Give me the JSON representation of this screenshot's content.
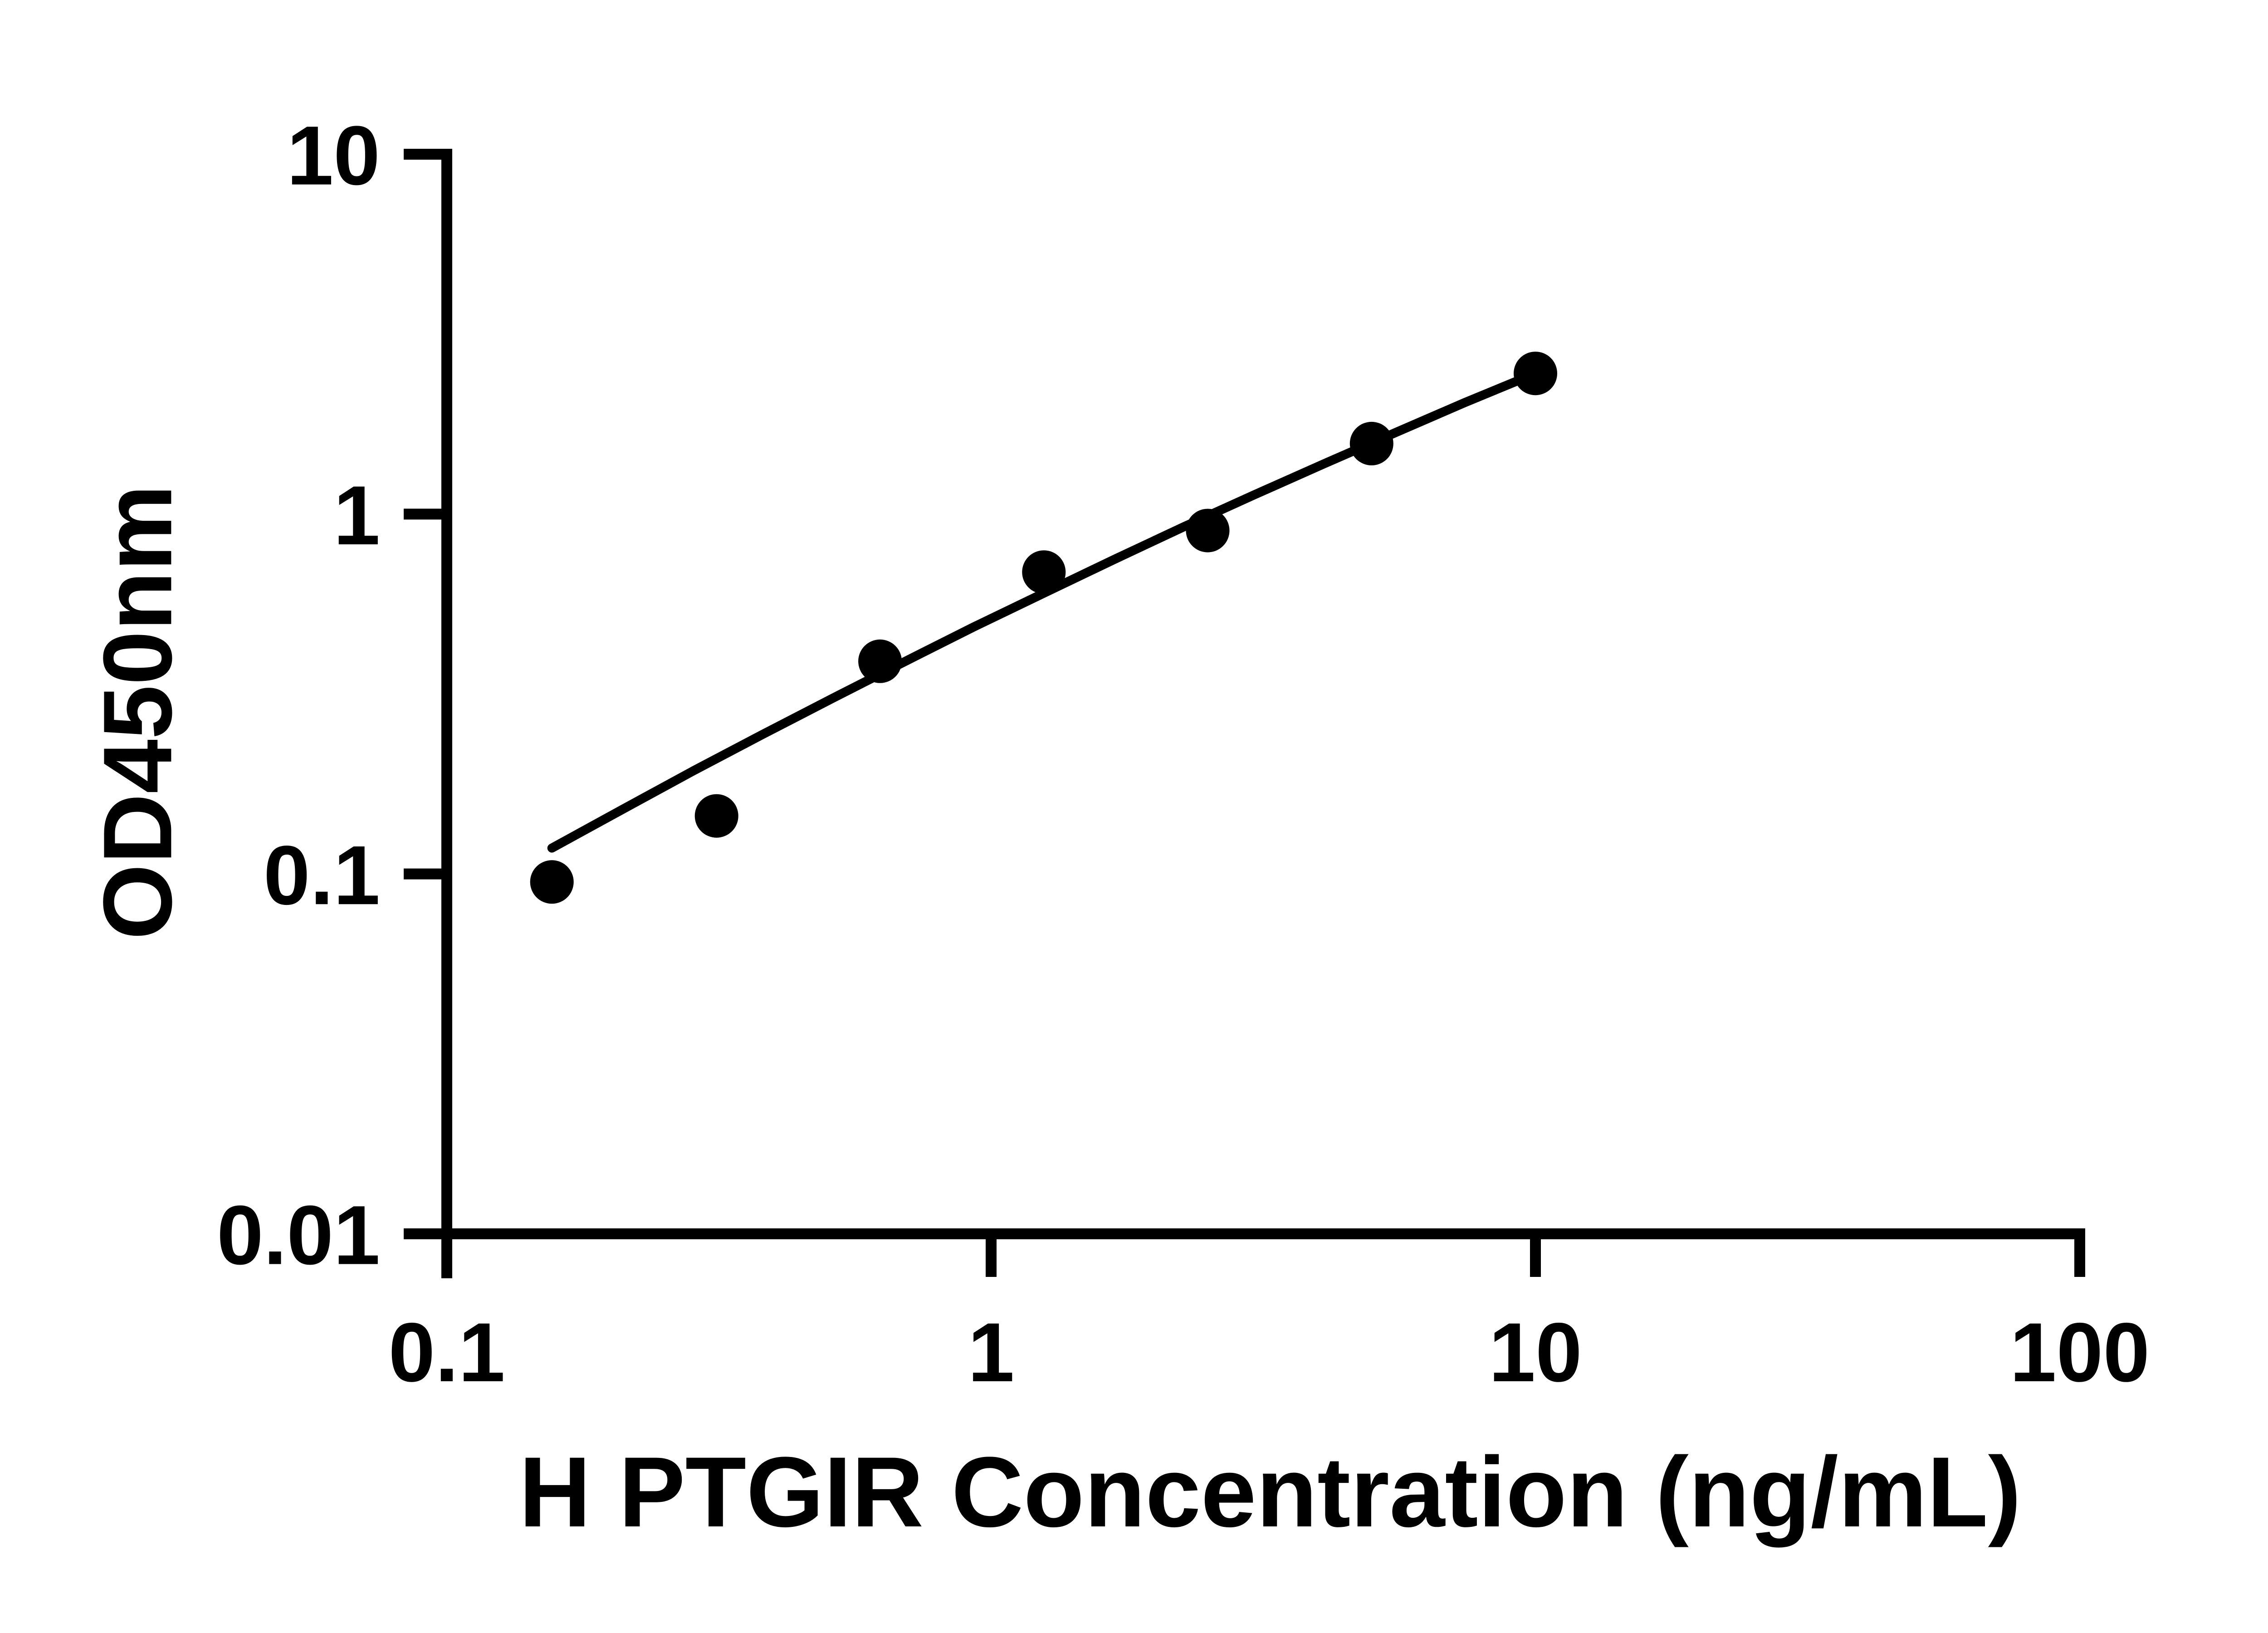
{
  "figure": {
    "background_color": "#ffffff",
    "axis_color": "#000000",
    "marker_color": "#000000",
    "line_color": "#000000"
  },
  "chart_data": {
    "type": "scatter",
    "title": "",
    "xlabel": "H PTGIR Concentration (ng/mL)",
    "ylabel": "OD450nm",
    "x_scale": "log",
    "y_scale": "log",
    "xlim": [
      0.1,
      100
    ],
    "ylim": [
      0.01,
      10
    ],
    "grid": false,
    "legend": null,
    "x_ticks": [
      {
        "value": 0.1,
        "label": "0.1"
      },
      {
        "value": 1,
        "label": "1"
      },
      {
        "value": 10,
        "label": "10"
      },
      {
        "value": 100,
        "label": "100"
      }
    ],
    "y_ticks": [
      {
        "value": 0.01,
        "label": "0.01"
      },
      {
        "value": 0.1,
        "label": "0.1"
      },
      {
        "value": 1,
        "label": "1"
      },
      {
        "value": 10,
        "label": "10"
      }
    ],
    "series": [
      {
        "name": "standard-points",
        "type": "scatter",
        "marker": "circle",
        "color": "#000000",
        "points": [
          {
            "x": 0.156,
            "y": 0.095
          },
          {
            "x": 0.313,
            "y": 0.145
          },
          {
            "x": 0.625,
            "y": 0.39
          },
          {
            "x": 1.25,
            "y": 0.69
          },
          {
            "x": 2.5,
            "y": 0.9
          },
          {
            "x": 5,
            "y": 1.57
          },
          {
            "x": 10,
            "y": 2.46
          }
        ]
      },
      {
        "name": "fit-curve",
        "type": "line",
        "color": "#000000",
        "points": [
          {
            "x": 0.156,
            "y": 0.118
          },
          {
            "x": 0.21,
            "y": 0.151
          },
          {
            "x": 0.283,
            "y": 0.193
          },
          {
            "x": 0.38,
            "y": 0.244
          },
          {
            "x": 0.512,
            "y": 0.308
          },
          {
            "x": 0.689,
            "y": 0.387
          },
          {
            "x": 0.927,
            "y": 0.485
          },
          {
            "x": 1.25,
            "y": 0.603
          },
          {
            "x": 1.68,
            "y": 0.747
          },
          {
            "x": 2.26,
            "y": 0.922
          },
          {
            "x": 3.04,
            "y": 1.13
          },
          {
            "x": 4.09,
            "y": 1.38
          },
          {
            "x": 5.51,
            "y": 1.68
          },
          {
            "x": 7.41,
            "y": 2.04
          },
          {
            "x": 10.0,
            "y": 2.46
          }
        ]
      }
    ]
  }
}
